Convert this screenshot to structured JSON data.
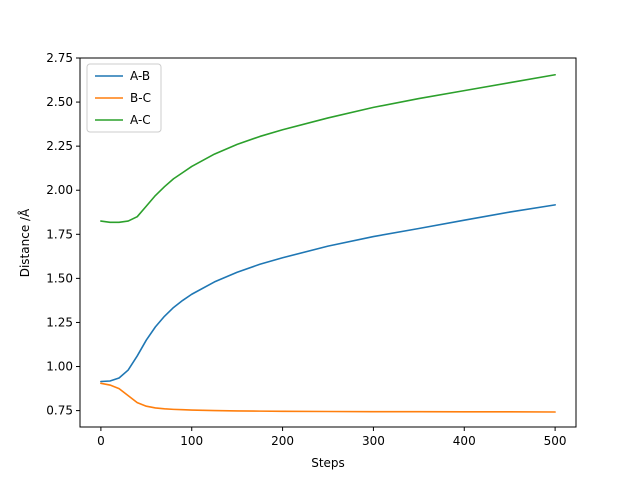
{
  "chart_data": {
    "type": "line",
    "title": "",
    "xlabel": "Steps",
    "ylabel": "Distance /Å",
    "xlim": [
      -23,
      523
    ],
    "ylim": [
      0.657,
      2.75
    ],
    "xticks": [
      0,
      100,
      200,
      300,
      400,
      500
    ],
    "xtick_labels": [
      "0",
      "100",
      "200",
      "300",
      "400",
      "500"
    ],
    "yticks": [
      0.75,
      1.0,
      1.25,
      1.5,
      1.75,
      2.0,
      2.25,
      2.5,
      2.75
    ],
    "ytick_labels": [
      "0.75",
      "1.00",
      "1.25",
      "1.50",
      "1.75",
      "2.00",
      "2.25",
      "2.50",
      "2.75"
    ],
    "grid": false,
    "legend_position": "top-left",
    "x": [
      0,
      10,
      20,
      30,
      40,
      50,
      60,
      70,
      80,
      90,
      100,
      125,
      150,
      175,
      200,
      250,
      300,
      350,
      400,
      450,
      500
    ],
    "series": [
      {
        "name": "A-B",
        "color": "#1f77b4",
        "values": [
          0.915,
          0.918,
          0.935,
          0.98,
          1.06,
          1.15,
          1.225,
          1.285,
          1.335,
          1.375,
          1.41,
          1.48,
          1.535,
          1.58,
          1.617,
          1.683,
          1.737,
          1.783,
          1.83,
          1.876,
          1.917
        ]
      },
      {
        "name": "B-C",
        "color": "#ff7f0e",
        "values": [
          0.905,
          0.895,
          0.875,
          0.835,
          0.795,
          0.775,
          0.765,
          0.76,
          0.757,
          0.755,
          0.753,
          0.75,
          0.748,
          0.747,
          0.746,
          0.745,
          0.744,
          0.744,
          0.743,
          0.743,
          0.742
        ]
      },
      {
        "name": "A-C",
        "color": "#2ca02c",
        "values": [
          1.825,
          1.818,
          1.818,
          1.825,
          1.85,
          1.91,
          1.97,
          2.02,
          2.065,
          2.1,
          2.135,
          2.205,
          2.26,
          2.305,
          2.343,
          2.41,
          2.47,
          2.52,
          2.565,
          2.61,
          2.655
        ]
      }
    ]
  }
}
